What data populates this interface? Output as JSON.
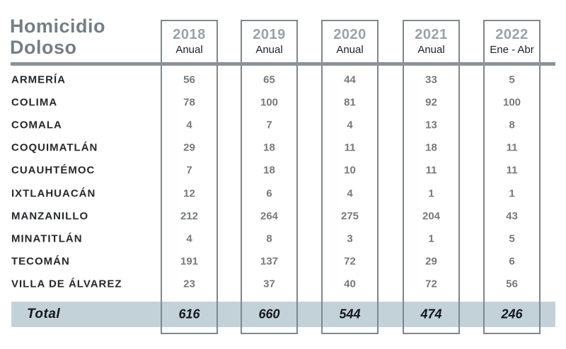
{
  "title": {
    "line1": "Homicidio",
    "line2": "Doloso"
  },
  "columns": [
    {
      "year": "2018",
      "period": "Anual"
    },
    {
      "year": "2019",
      "period": "Anual"
    },
    {
      "year": "2020",
      "period": "Anual"
    },
    {
      "year": "2021",
      "period": "Anual"
    },
    {
      "year": "2022",
      "period": "Ene - Abr"
    }
  ],
  "rows": [
    {
      "name": "ARMERÍA",
      "values": [
        "56",
        "65",
        "44",
        "33",
        "5"
      ]
    },
    {
      "name": "COLIMA",
      "values": [
        "78",
        "100",
        "81",
        "92",
        "100"
      ]
    },
    {
      "name": "COMALA",
      "values": [
        "4",
        "7",
        "4",
        "13",
        "8"
      ]
    },
    {
      "name": "COQUIMATLÁN",
      "values": [
        "29",
        "18",
        "11",
        "18",
        "11"
      ]
    },
    {
      "name": "CUAUHTÉMOC",
      "values": [
        "7",
        "18",
        "10",
        "11",
        "11"
      ]
    },
    {
      "name": "IXTLAHUACÁN",
      "values": [
        "12",
        "6",
        "4",
        "1",
        "1"
      ]
    },
    {
      "name": "MANZANILLO",
      "values": [
        "212",
        "264",
        "275",
        "204",
        "43"
      ]
    },
    {
      "name": "MINATITLÁN",
      "values": [
        "4",
        "8",
        "3",
        "1",
        "5"
      ]
    },
    {
      "name": "TECOMÁN",
      "values": [
        "191",
        "137",
        "72",
        "29",
        "6"
      ]
    },
    {
      "name": "VILLA DE ÁLVAREZ",
      "values": [
        "23",
        "37",
        "40",
        "72",
        "56"
      ]
    }
  ],
  "total": {
    "label": "Total",
    "values": [
      "616",
      "660",
      "544",
      "474",
      "246"
    ]
  },
  "colors": {
    "title_gray": "#757e84",
    "year_gray": "#9aa2a8",
    "border_gray": "#7e878d",
    "rule_gray": "#8b9399",
    "band_blue": "#c3d2d9"
  },
  "chart_data": {
    "type": "table",
    "title": "Homicidio Doloso",
    "categories": [
      "ARMERÍA",
      "COLIMA",
      "COMALA",
      "COQUIMATLÁN",
      "CUAUHTÉMOC",
      "IXTLAHUACÁN",
      "MANZANILLO",
      "MINATITLÁN",
      "TECOMÁN",
      "VILLA DE ÁLVAREZ"
    ],
    "series": [
      {
        "name": "2018 Anual",
        "values": [
          56,
          78,
          4,
          29,
          7,
          12,
          212,
          4,
          191,
          23
        ],
        "total": 616
      },
      {
        "name": "2019 Anual",
        "values": [
          65,
          100,
          7,
          18,
          18,
          6,
          264,
          8,
          137,
          37
        ],
        "total": 660
      },
      {
        "name": "2020 Anual",
        "values": [
          44,
          81,
          4,
          11,
          10,
          4,
          275,
          3,
          72,
          40
        ],
        "total": 544
      },
      {
        "name": "2021 Anual",
        "values": [
          33,
          92,
          13,
          18,
          11,
          1,
          204,
          1,
          29,
          72
        ],
        "total": 474
      },
      {
        "name": "2022 Ene - Abr",
        "values": [
          5,
          100,
          8,
          11,
          11,
          1,
          43,
          5,
          6,
          56
        ],
        "total": 246
      }
    ]
  }
}
